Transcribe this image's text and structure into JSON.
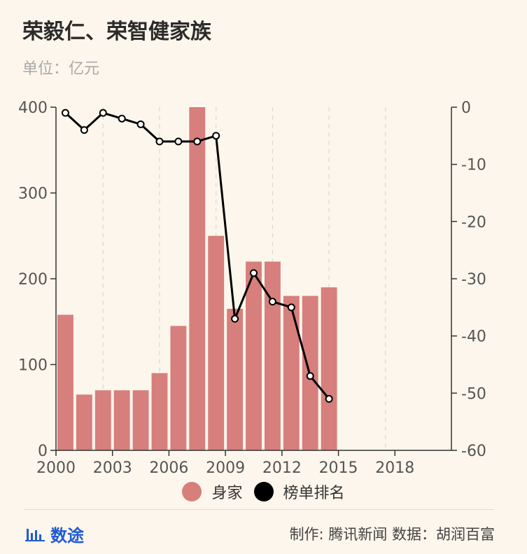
{
  "title": "荣毅仁、荣智健家族",
  "subtitle": "单位：亿元",
  "legend": {
    "bar_label": "身家",
    "line_label": "榜单排名"
  },
  "footer": {
    "brand": "数途",
    "credit": "制作: 腾讯新闻  数据：胡润百富"
  },
  "colors": {
    "bar": "#d67f7c",
    "line": "#000000",
    "background": "#fdf6ec",
    "brand": "#1f5bd6"
  },
  "chart_data": {
    "type": "bar",
    "x": [
      2000,
      2001,
      2002,
      2003,
      2004,
      2005,
      2006,
      2007,
      2008,
      2009,
      2010,
      2011,
      2012,
      2013,
      2014
    ],
    "xticks": [
      2000,
      2003,
      2006,
      2009,
      2012,
      2015,
      2018
    ],
    "xlim": [
      2000,
      2021
    ],
    "ylim_left": [
      0,
      400
    ],
    "yticks_left": [
      0,
      100,
      200,
      300,
      400
    ],
    "ylim_right": [
      -60,
      0
    ],
    "yticks_right": [
      0,
      -10,
      -20,
      -30,
      -40,
      -50,
      -60
    ],
    "grid": "vertical dashed",
    "legend_position": "bottom",
    "series": [
      {
        "name": "身家",
        "type": "bar",
        "axis": "left",
        "values": [
          158,
          65,
          70,
          70,
          70,
          90,
          145,
          400,
          250,
          165,
          220,
          220,
          180,
          180,
          190
        ]
      },
      {
        "name": "榜单排名",
        "type": "line",
        "axis": "right",
        "values": [
          -1,
          -4,
          -1,
          -2,
          -3,
          -6,
          -6,
          -6,
          -5,
          -37,
          -29,
          -34,
          -35,
          -47,
          -51
        ]
      }
    ]
  }
}
